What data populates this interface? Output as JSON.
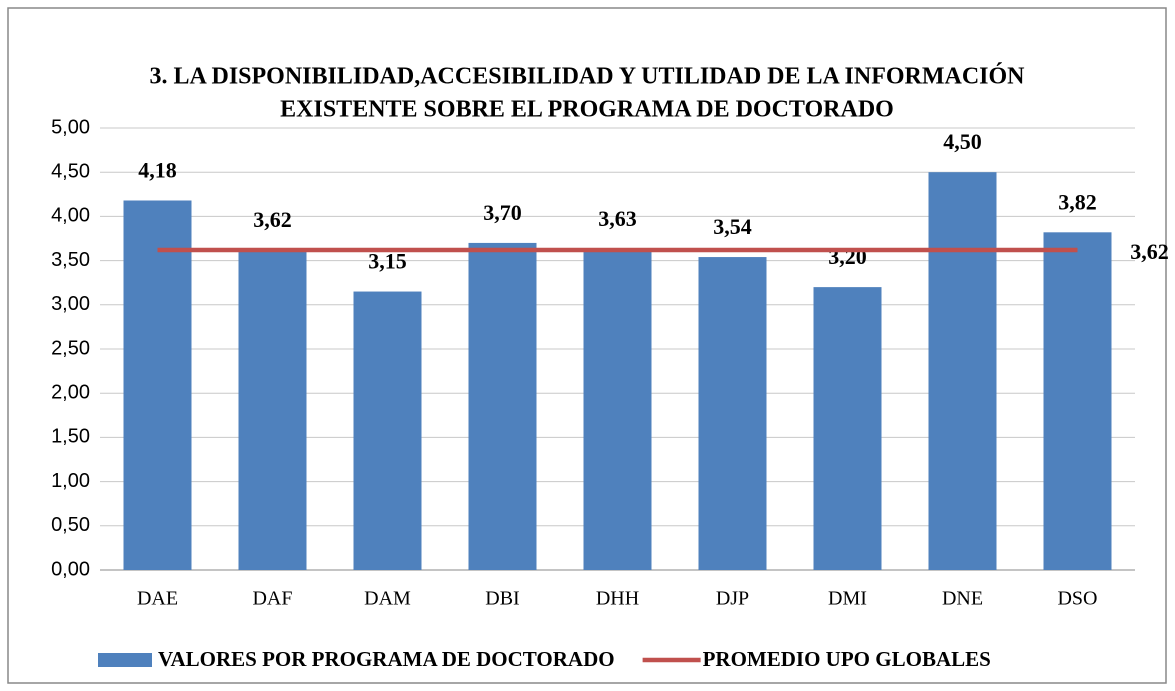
{
  "chart_data": {
    "type": "bar_line",
    "title": [
      "3. LA DISPONIBILIDAD,ACCESIBILIDAD Y UTILIDAD DE LA INFORMACIÓN",
      "EXISTENTE SOBRE EL PROGRAMA DE DOCTORADO"
    ],
    "categories": [
      "DAE",
      "DAF",
      "DAM",
      "DBI",
      "DHH",
      "DJP",
      "DMI",
      "DNE",
      "DSO"
    ],
    "series": [
      {
        "name": "VALORES POR PROGRAMA DE DOCTORADO",
        "type": "bar",
        "color": "#4f81bd",
        "values": [
          4.18,
          3.62,
          3.15,
          3.7,
          3.63,
          3.54,
          3.2,
          4.5,
          3.82
        ],
        "value_labels": [
          "4,18",
          "3,62",
          "3,15",
          "3,70",
          "3,63",
          "3,54",
          "3,20",
          "4,50",
          "3,82"
        ]
      },
      {
        "name": "PROMEDIO UPO GLOBALES",
        "type": "line",
        "color": "#c0504d",
        "values": [
          3.62,
          3.62,
          3.62,
          3.62,
          3.62,
          3.62,
          3.62,
          3.62,
          3.62
        ],
        "value_labels": [
          null,
          null,
          null,
          null,
          null,
          null,
          null,
          null,
          "3,62"
        ]
      }
    ],
    "ylim": [
      0,
      5
    ],
    "yticks": [
      {
        "value": 0,
        "label": "0,00"
      },
      {
        "value": 0.5,
        "label": "0,50"
      },
      {
        "value": 1,
        "label": "1,00"
      },
      {
        "value": 1.5,
        "label": "1,50"
      },
      {
        "value": 2,
        "label": "2,00"
      },
      {
        "value": 2.5,
        "label": "2,50"
      },
      {
        "value": 3,
        "label": "3,00"
      },
      {
        "value": 3.5,
        "label": "3,50"
      },
      {
        "value": 4,
        "label": "4,00"
      },
      {
        "value": 4.5,
        "label": "4,50"
      },
      {
        "value": 5,
        "label": "5,00"
      }
    ],
    "grid": true,
    "legend": "bottom"
  }
}
